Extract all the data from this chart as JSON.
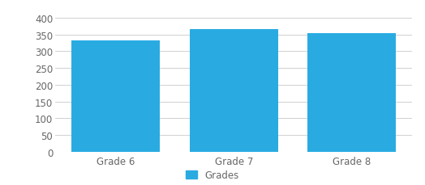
{
  "categories": [
    "Grade 6",
    "Grade 7",
    "Grade 8"
  ],
  "values": [
    333,
    365,
    353
  ],
  "bar_color": "#29abe2",
  "ylim": [
    0,
    400
  ],
  "yticks": [
    0,
    50,
    100,
    150,
    200,
    250,
    300,
    350,
    400
  ],
  "legend_label": "Grades",
  "background_color": "#ffffff",
  "grid_color": "#d0d0d0",
  "tick_label_color": "#666666",
  "bar_width": 0.75,
  "figsize": [
    5.24,
    2.3
  ],
  "dpi": 100
}
